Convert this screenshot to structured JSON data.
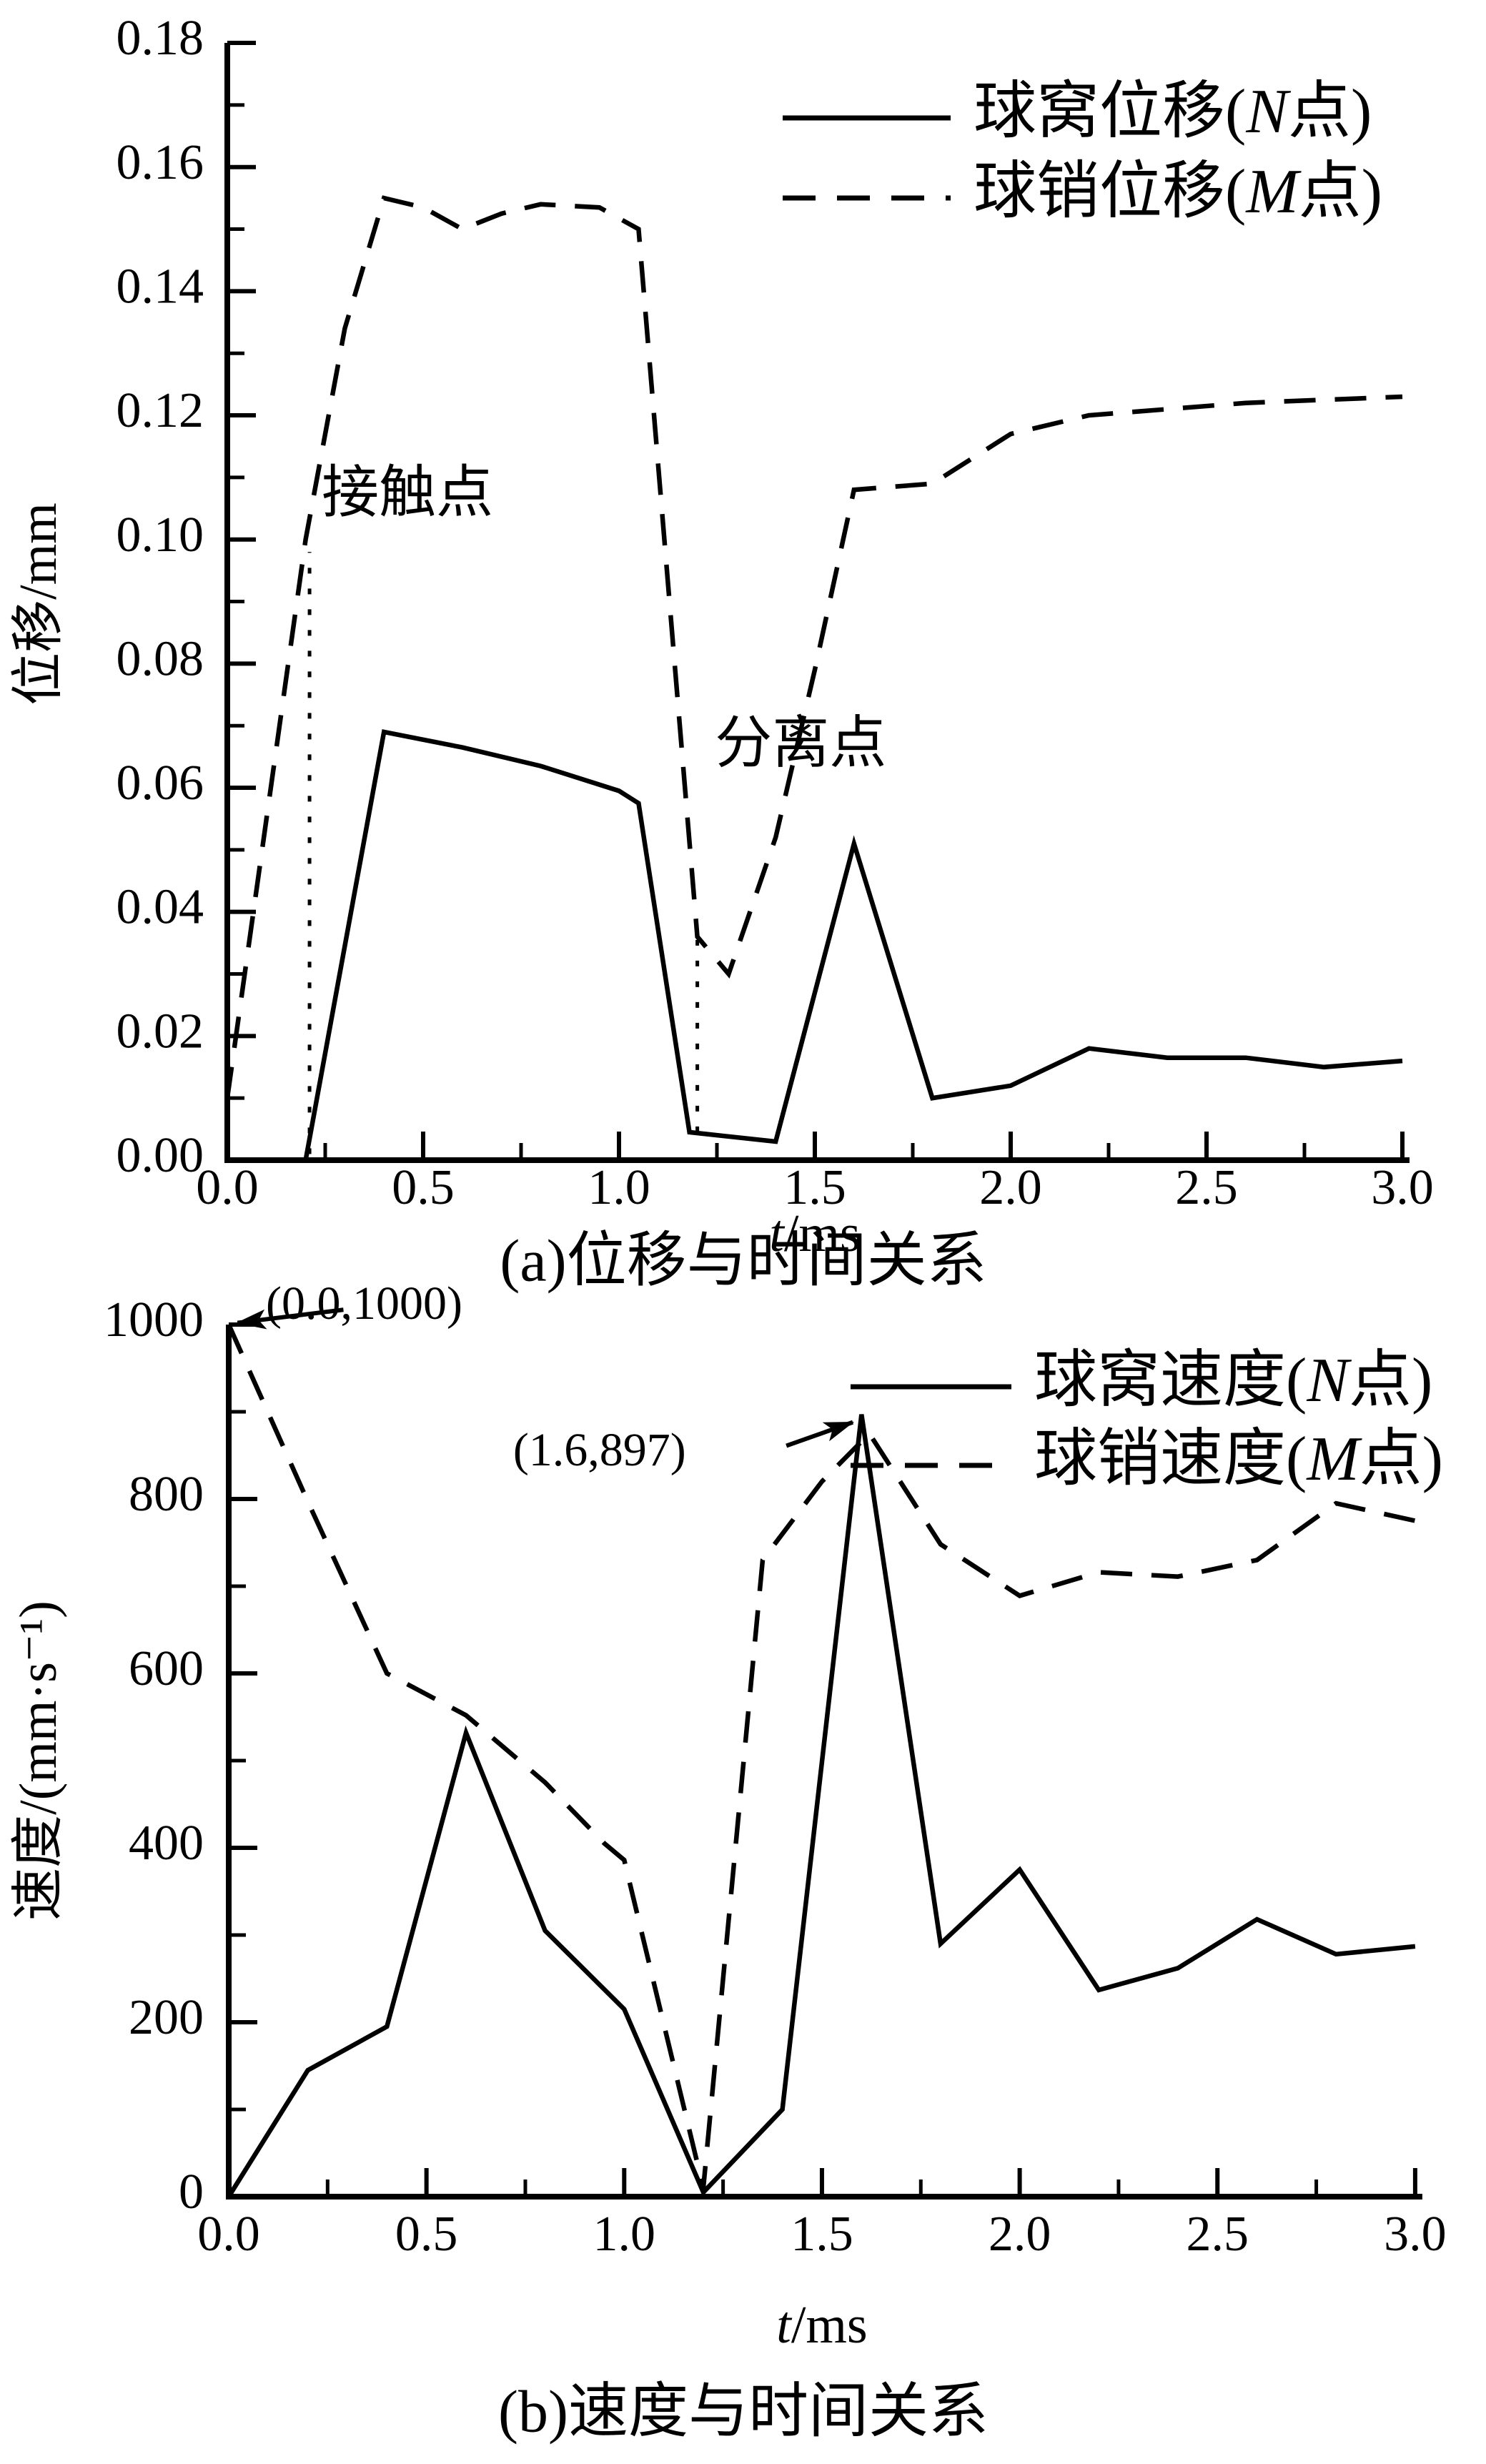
{
  "page": {
    "background": "#ffffff",
    "ink": "#000000"
  },
  "chart_data": [
    {
      "id": "a",
      "type": "line",
      "caption": "(a)位移与时间关系",
      "xlabel": {
        "italic": "t",
        "rest": "/ms"
      },
      "ylabel": "位移/mm",
      "xlim": [
        0,
        3.0
      ],
      "ylim": [
        0,
        0.18
      ],
      "grid": false,
      "legend_position": "top-right-inside",
      "x_ticks": {
        "values": [
          0,
          0.5,
          1.0,
          1.5,
          2.0,
          2.5,
          3.0
        ],
        "labels": [
          "0.0",
          "0.5",
          "1.0",
          "1.5",
          "2.0",
          "2.5",
          "3.0"
        ],
        "minor": [
          0.25,
          0.75,
          1.25,
          1.75,
          2.25,
          2.75
        ]
      },
      "y_ticks": {
        "values": [
          0,
          0.02,
          0.04,
          0.06,
          0.08,
          0.1,
          0.12,
          0.14,
          0.16,
          0.18
        ],
        "labels": [
          "0.00",
          "0.02",
          "0.04",
          "0.06",
          "0.08",
          "0.10",
          "0.12",
          "0.14",
          "0.16",
          "0.18"
        ],
        "minor": [
          0.01,
          0.03,
          0.05,
          0.07,
          0.09,
          0.11,
          0.13,
          0.15,
          0.17
        ]
      },
      "legend": [
        {
          "pre": "球窝位移(",
          "it": "N",
          "post": "点)",
          "style": "solid"
        },
        {
          "pre": "球销位移(",
          "it": "M",
          "post": "点)",
          "style": "dashed"
        }
      ],
      "series": [
        {
          "name": "socket-displacement-N",
          "style": "solid",
          "points": [
            [
              0,
              0
            ],
            [
              0.2,
              0
            ],
            [
              0.4,
              0.069
            ],
            [
              0.6,
              0.0665
            ],
            [
              0.8,
              0.0635
            ],
            [
              1.0,
              0.0595
            ],
            [
              1.05,
              0.0575
            ],
            [
              1.18,
              0.0045
            ],
            [
              1.4,
              0.003
            ],
            [
              1.6,
              0.051
            ],
            [
              1.8,
              0.01
            ],
            [
              2.0,
              0.012
            ],
            [
              2.2,
              0.018
            ],
            [
              2.4,
              0.0165
            ],
            [
              2.6,
              0.0165
            ],
            [
              2.8,
              0.015
            ],
            [
              3.0,
              0.016
            ]
          ]
        },
        {
          "name": "pin-displacement-M",
          "style": "dashed",
          "points": [
            [
              0,
              0.01
            ],
            [
              0.2,
              0.1
            ],
            [
              0.3,
              0.134
            ],
            [
              0.4,
              0.155
            ],
            [
              0.5,
              0.1535
            ],
            [
              0.6,
              0.15
            ],
            [
              0.7,
              0.1525
            ],
            [
              0.8,
              0.154
            ],
            [
              0.95,
              0.1535
            ],
            [
              1.05,
              0.15
            ],
            [
              1.2,
              0.036
            ],
            [
              1.28,
              0.03
            ],
            [
              1.4,
              0.052
            ],
            [
              1.5,
              0.079
            ],
            [
              1.6,
              0.108
            ],
            [
              1.8,
              0.109
            ],
            [
              2.0,
              0.117
            ],
            [
              2.2,
              0.12
            ],
            [
              2.4,
              0.121
            ],
            [
              2.6,
              0.122
            ],
            [
              2.8,
              0.1225
            ],
            [
              3.0,
              0.123
            ]
          ]
        }
      ],
      "annotations": {
        "texts": [
          {
            "label": "接触点",
            "t": 0.241,
            "v": 0.1066,
            "anchor": "start"
          },
          {
            "label": "分离点",
            "t": 1.245,
            "v": 0.0662,
            "anchor": "start"
          }
        ],
        "vlines": [
          {
            "t": 0.21,
            "v1": 0.001,
            "v2": 0.098
          },
          {
            "t": 1.2,
            "v1": 0.0045,
            "v2": 0.0355
          }
        ],
        "arrows": []
      }
    },
    {
      "id": "b",
      "type": "line",
      "caption": "(b)速度与时间关系",
      "xlabel": {
        "italic": "t",
        "rest": "/ms"
      },
      "ylabel": "速度/(mm·s⁻¹)",
      "xlim": [
        0,
        3.0
      ],
      "ylim": [
        0,
        1000
      ],
      "grid": false,
      "legend_position": "top-right-inside",
      "x_ticks": {
        "values": [
          0,
          0.5,
          1.0,
          1.5,
          2.0,
          2.5,
          3.0
        ],
        "labels": [
          "0.0",
          "0.5",
          "1.0",
          "1.5",
          "2.0",
          "2.5",
          "3.0"
        ],
        "minor": [
          0.25,
          0.75,
          1.25,
          1.75,
          2.25,
          2.75
        ]
      },
      "y_ticks": {
        "values": [
          0,
          200,
          400,
          600,
          800,
          1000
        ],
        "labels": [
          "0",
          "200",
          "400",
          "600",
          "800",
          "1000"
        ],
        "minor": [
          100,
          300,
          500,
          700,
          900
        ]
      },
      "legend": [
        {
          "pre": "球窝速度(",
          "it": "N",
          "post": "点)",
          "style": "solid"
        },
        {
          "pre": "球销速度(",
          "it": "M",
          "post": "点)",
          "style": "dashed"
        }
      ],
      "series": [
        {
          "name": "socket-velocity-N",
          "style": "solid",
          "points": [
            [
              0,
              0
            ],
            [
              0.2,
              145
            ],
            [
              0.4,
              195
            ],
            [
              0.6,
              532
            ],
            [
              0.8,
              305
            ],
            [
              1.0,
              215
            ],
            [
              1.2,
              5
            ],
            [
              1.4,
              100
            ],
            [
              1.6,
              897
            ],
            [
              1.8,
              290
            ],
            [
              2.0,
              375
            ],
            [
              2.2,
              237
            ],
            [
              2.4,
              262
            ],
            [
              2.6,
              318
            ],
            [
              2.8,
              278
            ],
            [
              3.0,
              287
            ]
          ]
        },
        {
          "name": "pin-velocity-M",
          "style": "dashed",
          "points": [
            [
              0,
              1000
            ],
            [
              0.2,
              797
            ],
            [
              0.4,
              600
            ],
            [
              0.6,
              552
            ],
            [
              0.8,
              475
            ],
            [
              0.95,
              405
            ],
            [
              1.0,
              386
            ],
            [
              1.2,
              10
            ],
            [
              1.35,
              730
            ],
            [
              1.5,
              820
            ],
            [
              1.62,
              875
            ],
            [
              1.8,
              748
            ],
            [
              2.0,
              689
            ],
            [
              2.2,
              716
            ],
            [
              2.4,
              711
            ],
            [
              2.6,
              730
            ],
            [
              2.8,
              795
            ],
            [
              3.0,
              775
            ]
          ]
        }
      ],
      "annotations": {
        "texts": [
          {
            "label": "(0.0,1000)",
            "t": 0.094,
            "v": 1019,
            "anchor": "start"
          },
          {
            "label": "(1.6,897)",
            "t": 0.719,
            "v": 851,
            "anchor": "start"
          }
        ],
        "vlines": [],
        "arrows": [
          {
            "from_t": 0.29,
            "from_v": 1017,
            "to_t": 0.022,
            "to_v": 1002
          },
          {
            "from_t": 1.41,
            "from_v": 861,
            "to_t": 1.578,
            "to_v": 888
          }
        ]
      }
    }
  ]
}
